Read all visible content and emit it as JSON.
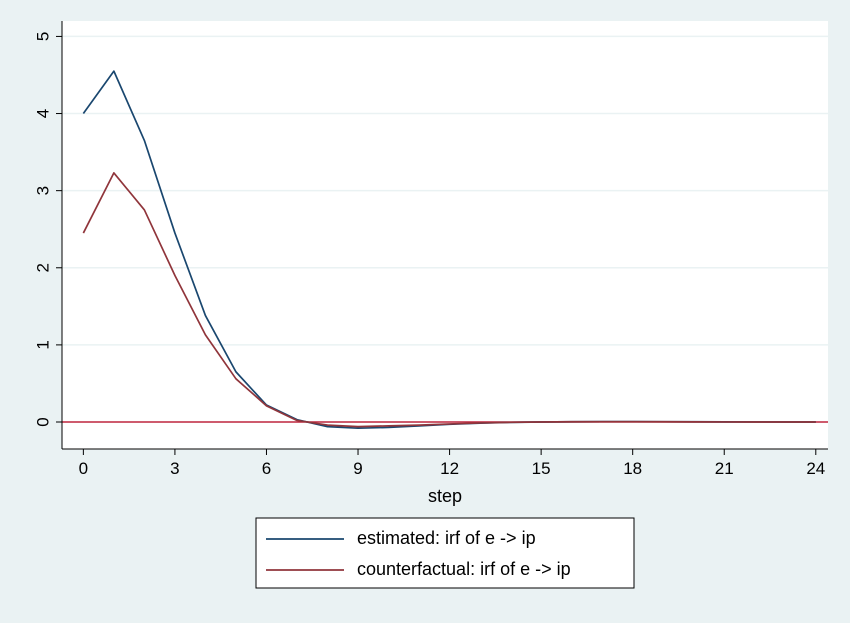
{
  "chart_data": {
    "type": "line",
    "title": "",
    "xlabel": "step",
    "ylabel": "",
    "xlim": [
      -0.7,
      24.4
    ],
    "ylim": [
      -0.35,
      5.2
    ],
    "xticks": [
      0,
      3,
      6,
      9,
      12,
      15,
      18,
      21,
      24
    ],
    "yticks": [
      0,
      1,
      2,
      3,
      4,
      5
    ],
    "grid": true,
    "legend_position": "bottom",
    "reference_line": {
      "y": 0,
      "color": "#c1273f"
    },
    "x": [
      0,
      1,
      2,
      3,
      4,
      5,
      6,
      7,
      8,
      9,
      10,
      11,
      12,
      13,
      14,
      15,
      16,
      17,
      18,
      19,
      20,
      21,
      22,
      23,
      24
    ],
    "series": [
      {
        "name": "estimated: irf of e -> ip",
        "color": "#1a476f",
        "values": [
          4.0,
          4.55,
          3.65,
          2.45,
          1.38,
          0.65,
          0.22,
          0.03,
          -0.06,
          -0.08,
          -0.07,
          -0.05,
          -0.03,
          -0.015,
          -0.005,
          0.0,
          0.003,
          0.005,
          0.005,
          0.004,
          0.003,
          0.002,
          0.001,
          0.0,
          0.0
        ]
      },
      {
        "name": "counterfactual: irf of e -> ip",
        "color": "#90353b",
        "values": [
          2.45,
          3.23,
          2.75,
          1.9,
          1.13,
          0.56,
          0.21,
          0.02,
          -0.04,
          -0.06,
          -0.05,
          -0.04,
          -0.025,
          -0.012,
          -0.004,
          0.0,
          0.003,
          0.004,
          0.004,
          0.003,
          0.002,
          0.001,
          0.0,
          0.0,
          0.0
        ]
      }
    ]
  }
}
